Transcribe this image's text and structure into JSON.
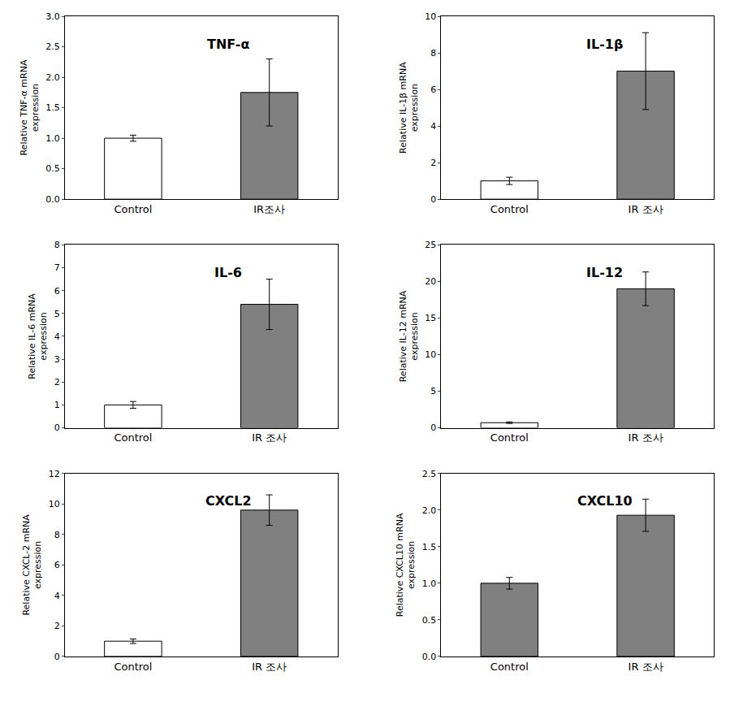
{
  "chart_data": [
    {
      "type": "bar",
      "title": "TNF-α",
      "ylabel": "Relative TNF-α mRNA\nexpression",
      "categories": [
        "Control",
        "IR조사"
      ],
      "values": [
        1.0,
        1.75
      ],
      "errors": [
        0.05,
        0.55
      ],
      "colors": [
        "#ffffff",
        "#808080"
      ],
      "ylim": [
        0,
        3
      ],
      "yticks": [
        {
          "value": 0,
          "label": "0.0"
        },
        0.5,
        {
          "value": 1,
          "label": "1.0"
        },
        1.5,
        {
          "value": 2,
          "label": "2.0"
        },
        2.5,
        {
          "value": 3,
          "label": "3.0"
        }
      ],
      "grid": false
    },
    {
      "type": "bar",
      "title": "IL-1β",
      "ylabel": "Relative IL-1β mRNA\nexpression",
      "categories": [
        "Control",
        "IR 조사"
      ],
      "values": [
        1.0,
        7.0
      ],
      "errors": [
        0.2,
        2.1
      ],
      "colors": [
        "#ffffff",
        "#808080"
      ],
      "ylim": [
        0,
        10
      ],
      "yticks": [
        0,
        2,
        4,
        6,
        8,
        10
      ],
      "grid": false
    },
    {
      "type": "bar",
      "title": "IL-6",
      "ylabel": "Relative IL-6 mRNA\nexpression",
      "categories": [
        "Control",
        "IR 조사"
      ],
      "values": [
        1.0,
        5.4
      ],
      "errors": [
        0.15,
        1.1
      ],
      "colors": [
        "#ffffff",
        "#808080"
      ],
      "ylim": [
        0,
        8
      ],
      "yticks": [
        0,
        1,
        2,
        3,
        4,
        5,
        6,
        7,
        8
      ],
      "grid": false
    },
    {
      "type": "bar",
      "title": "IL-12",
      "ylabel": "Relative IL-12 mRNA\nexpression",
      "categories": [
        "Control",
        "IR 조사"
      ],
      "values": [
        0.7,
        19.0
      ],
      "errors": [
        0.1,
        2.3
      ],
      "colors": [
        "#ffffff",
        "#808080"
      ],
      "ylim": [
        0,
        25
      ],
      "yticks": [
        0,
        5,
        10,
        15,
        20,
        25
      ],
      "grid": false
    },
    {
      "type": "bar",
      "title": "CXCL2",
      "ylabel": "Relative CXCL-2 mRNA\nexpression",
      "categories": [
        "Control",
        "IR 조사"
      ],
      "values": [
        1.0,
        9.6
      ],
      "errors": [
        0.15,
        1.0
      ],
      "colors": [
        "#ffffff",
        "#808080"
      ],
      "ylim": [
        0,
        12
      ],
      "yticks": [
        0,
        2,
        4,
        6,
        8,
        10,
        12
      ],
      "grid": false
    },
    {
      "type": "bar",
      "title": "CXCL10",
      "ylabel": "Relative CXCL10 mRNA\nexpression",
      "categories": [
        "Control",
        "IR 조사"
      ],
      "values": [
        1.0,
        1.93
      ],
      "errors": [
        0.08,
        0.22
      ],
      "colors": [
        "#808080",
        "#808080"
      ],
      "ylim": [
        0,
        2.5
      ],
      "yticks": [
        {
          "value": 0,
          "label": "0.0"
        },
        0.5,
        {
          "value": 1,
          "label": "1.0"
        },
        1.5,
        {
          "value": 2,
          "label": "2.0"
        },
        2.5
      ],
      "grid": false
    }
  ]
}
